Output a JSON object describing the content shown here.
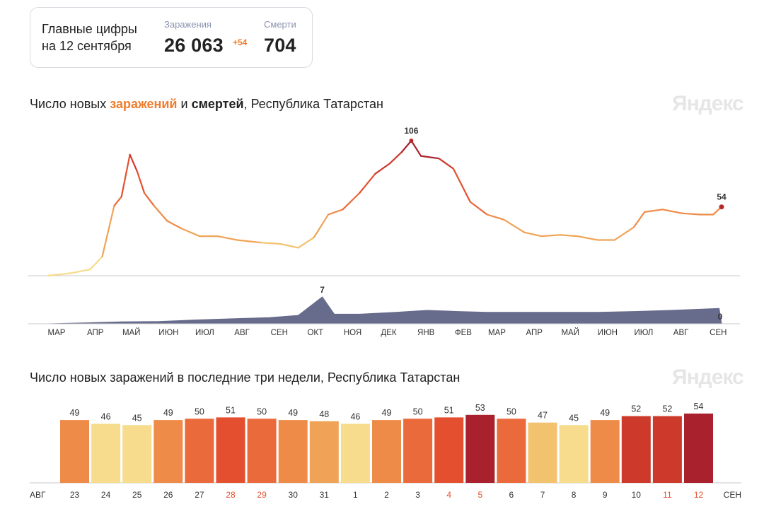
{
  "summary": {
    "title_line1": "Главные цифры",
    "title_line2": "на 12 сентября",
    "cases_label": "Заражения",
    "cases_value": "26 063",
    "cases_delta": "+54",
    "deaths_label": "Смерти",
    "deaths_value": "704"
  },
  "chart1": {
    "title_pre": "Число новых ",
    "title_hl1": "заражений",
    "title_mid": " и ",
    "title_hl2": "смертей",
    "title_post": ", Республика Татарстан",
    "watermark": "Яндекс"
  },
  "chart2": {
    "title": "Число новых заражений в последние три недели, Республика Татарстан",
    "watermark": "Яндекс"
  },
  "colors": {
    "scale": [
      "#f6dc8c",
      "#f3c26e",
      "#f0a356",
      "#ef8b48",
      "#eb6a3c",
      "#e4502f",
      "#cd3a2c",
      "#a8212c"
    ],
    "deaths": "#676b8c",
    "end_marker": "#b52828",
    "baseline": "#c8c8c8"
  },
  "chart_data": [
    {
      "type": "line",
      "title": "Число новых заражений и смертей, Республика Татарстан",
      "series": [
        {
          "name": "заражений",
          "color_scale": "yellow-to-red by value",
          "points": [
            {
              "x": "2020-03-01",
              "y": 0
            },
            {
              "x": "2020-03-20",
              "y": 2
            },
            {
              "x": "2020-04-05",
              "y": 5
            },
            {
              "x": "2020-04-15",
              "y": 15
            },
            {
              "x": "2020-04-25",
              "y": 55
            },
            {
              "x": "2020-05-01",
              "y": 62
            },
            {
              "x": "2020-05-08",
              "y": 95
            },
            {
              "x": "2020-05-14",
              "y": 82
            },
            {
              "x": "2020-05-20",
              "y": 65
            },
            {
              "x": "2020-05-28",
              "y": 55
            },
            {
              "x": "2020-06-08",
              "y": 43
            },
            {
              "x": "2020-06-20",
              "y": 37
            },
            {
              "x": "2020-07-05",
              "y": 31
            },
            {
              "x": "2020-07-20",
              "y": 31
            },
            {
              "x": "2020-08-05",
              "y": 28
            },
            {
              "x": "2020-08-25",
              "y": 26
            },
            {
              "x": "2020-09-10",
              "y": 25
            },
            {
              "x": "2020-09-25",
              "y": 22
            },
            {
              "x": "2020-10-08",
              "y": 30
            },
            {
              "x": "2020-10-20",
              "y": 48
            },
            {
              "x": "2020-11-01",
              "y": 52
            },
            {
              "x": "2020-11-15",
              "y": 65
            },
            {
              "x": "2020-11-28",
              "y": 80
            },
            {
              "x": "2020-12-10",
              "y": 88
            },
            {
              "x": "2020-12-20",
              "y": 97
            },
            {
              "x": "2020-12-28",
              "y": 106
            },
            {
              "x": "2021-01-05",
              "y": 94
            },
            {
              "x": "2021-01-20",
              "y": 92
            },
            {
              "x": "2021-02-01",
              "y": 84
            },
            {
              "x": "2021-02-15",
              "y": 58
            },
            {
              "x": "2021-03-01",
              "y": 48
            },
            {
              "x": "2021-03-15",
              "y": 44
            },
            {
              "x": "2021-04-01",
              "y": 34
            },
            {
              "x": "2021-04-15",
              "y": 31
            },
            {
              "x": "2021-05-01",
              "y": 32
            },
            {
              "x": "2021-05-15",
              "y": 31
            },
            {
              "x": "2021-06-01",
              "y": 28
            },
            {
              "x": "2021-06-15",
              "y": 28
            },
            {
              "x": "2021-07-01",
              "y": 38
            },
            {
              "x": "2021-07-10",
              "y": 50
            },
            {
              "x": "2021-07-25",
              "y": 52
            },
            {
              "x": "2021-08-10",
              "y": 49
            },
            {
              "x": "2021-08-25",
              "y": 48
            },
            {
              "x": "2021-09-05",
              "y": 48
            },
            {
              "x": "2021-09-12",
              "y": 54
            }
          ],
          "peak_label": 106,
          "last_label": 54
        },
        {
          "name": "смертей",
          "points": [
            {
              "x": "2020-03-01",
              "y": 0
            },
            {
              "x": "2020-05-01",
              "y": 0.5
            },
            {
              "x": "2020-06-01",
              "y": 0.6
            },
            {
              "x": "2020-07-01",
              "y": 1
            },
            {
              "x": "2020-08-01",
              "y": 1.3
            },
            {
              "x": "2020-09-01",
              "y": 1.6
            },
            {
              "x": "2020-09-25",
              "y": 2.2
            },
            {
              "x": "2020-10-15",
              "y": 7
            },
            {
              "x": "2020-10-25",
              "y": 2.5
            },
            {
              "x": "2020-11-15",
              "y": 2.5
            },
            {
              "x": "2020-12-15",
              "y": 3
            },
            {
              "x": "2021-01-10",
              "y": 3.5
            },
            {
              "x": "2021-02-05",
              "y": 3.2
            },
            {
              "x": "2021-03-01",
              "y": 3
            },
            {
              "x": "2021-04-01",
              "y": 3
            },
            {
              "x": "2021-05-01",
              "y": 3
            },
            {
              "x": "2021-06-01",
              "y": 3
            },
            {
              "x": "2021-07-01",
              "y": 3.2
            },
            {
              "x": "2021-08-01",
              "y": 3.5
            },
            {
              "x": "2021-09-10",
              "y": 4
            },
            {
              "x": "2021-09-12",
              "y": 0
            }
          ],
          "peak_label": 7,
          "last_label": 0
        }
      ],
      "x_ticks": [
        "МАР",
        "АПР",
        "МАЙ",
        "ИЮН",
        "ИЮЛ",
        "АВГ",
        "СЕН",
        "ОКТ",
        "НОЯ",
        "ДЕК",
        "ЯНВ",
        "ФЕВ",
        "МАР",
        "АПР",
        "МАЙ",
        "ИЮН",
        "ИЮЛ",
        "АВГ",
        "СЕН"
      ],
      "ylim": [
        0,
        106
      ],
      "grid": false
    },
    {
      "type": "bar",
      "title": "Число новых заражений в последние три недели, Республика Татарстан",
      "categories": [
        "23",
        "24",
        "25",
        "26",
        "27",
        "28",
        "29",
        "30",
        "31",
        "1",
        "2",
        "3",
        "4",
        "5",
        "6",
        "7",
        "8",
        "9",
        "10",
        "11",
        "12"
      ],
      "values": [
        49,
        46,
        45,
        49,
        50,
        51,
        50,
        49,
        48,
        46,
        49,
        50,
        51,
        53,
        50,
        47,
        45,
        49,
        52,
        52,
        54
      ],
      "weekend": [
        false,
        false,
        false,
        false,
        false,
        true,
        true,
        false,
        false,
        false,
        false,
        false,
        true,
        true,
        false,
        false,
        false,
        false,
        false,
        true,
        true
      ],
      "x_start_label": "АВГ",
      "x_end_label": "СЕН",
      "ylim": [
        0,
        54
      ]
    }
  ]
}
